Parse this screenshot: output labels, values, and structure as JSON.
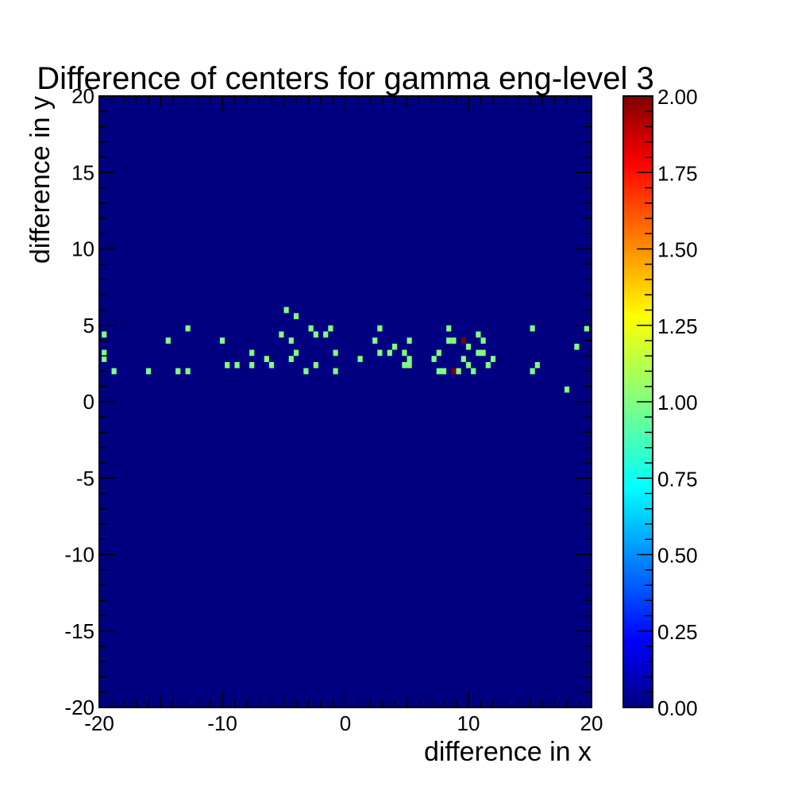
{
  "chart_data": {
    "type": "heatmap",
    "title": "Difference of centers for gamma eng-level 3",
    "xlabel": "difference in x",
    "ylabel": "difference in y",
    "xlim": [
      -20,
      20
    ],
    "ylim": [
      -20,
      20
    ],
    "bin_width": 0.4,
    "x_ticks": [
      "-20",
      "-10",
      "0",
      "10",
      "20"
    ],
    "y_ticks": [
      "-20",
      "-15",
      "-10",
      "-5",
      "0",
      "5",
      "10",
      "15",
      "20"
    ],
    "colorbar": {
      "range": [
        0,
        2
      ],
      "ticks": [
        "0.00",
        "0.25",
        "0.50",
        "0.75",
        "1.00",
        "1.25",
        "1.50",
        "1.75",
        "2.00"
      ]
    },
    "background_value": 0,
    "colors": {
      "zero": "#000080",
      "one": "#80ff80",
      "two": "#800000"
    },
    "cells": [
      {
        "x": -19.8,
        "y": 4.2,
        "v": 1
      },
      {
        "x": -19.8,
        "y": 3.0,
        "v": 1
      },
      {
        "x": -19.8,
        "y": 2.6,
        "v": 1
      },
      {
        "x": -19.0,
        "y": 1.8,
        "v": 1
      },
      {
        "x": -16.2,
        "y": 1.8,
        "v": 1
      },
      {
        "x": -14.6,
        "y": 3.8,
        "v": 1
      },
      {
        "x": -13.8,
        "y": 1.8,
        "v": 1
      },
      {
        "x": -13.0,
        "y": 4.6,
        "v": 1
      },
      {
        "x": -13.0,
        "y": 1.8,
        "v": 1
      },
      {
        "x": -10.2,
        "y": 3.8,
        "v": 1
      },
      {
        "x": -9.8,
        "y": 2.2,
        "v": 1
      },
      {
        "x": -9.0,
        "y": 2.2,
        "v": 1
      },
      {
        "x": -7.8,
        "y": 3.0,
        "v": 1
      },
      {
        "x": -7.8,
        "y": 2.2,
        "v": 1
      },
      {
        "x": -6.6,
        "y": 2.6,
        "v": 1
      },
      {
        "x": -6.2,
        "y": 2.2,
        "v": 1
      },
      {
        "x": -5.4,
        "y": 4.2,
        "v": 1
      },
      {
        "x": -5.0,
        "y": 5.8,
        "v": 1
      },
      {
        "x": -4.6,
        "y": 3.8,
        "v": 1
      },
      {
        "x": -4.6,
        "y": 2.6,
        "v": 1
      },
      {
        "x": -4.2,
        "y": 5.4,
        "v": 1
      },
      {
        "x": -4.2,
        "y": 3.0,
        "v": 1
      },
      {
        "x": -3.4,
        "y": 1.8,
        "v": 1
      },
      {
        "x": -3.0,
        "y": 4.6,
        "v": 1
      },
      {
        "x": -2.6,
        "y": 4.2,
        "v": 1
      },
      {
        "x": -2.6,
        "y": 2.2,
        "v": 1
      },
      {
        "x": -1.8,
        "y": 4.2,
        "v": 1
      },
      {
        "x": -1.4,
        "y": 4.6,
        "v": 1
      },
      {
        "x": -1.0,
        "y": 3.0,
        "v": 1
      },
      {
        "x": -1.0,
        "y": 1.8,
        "v": 1
      },
      {
        "x": 1.0,
        "y": 2.6,
        "v": 1
      },
      {
        "x": 2.2,
        "y": 3.8,
        "v": 1
      },
      {
        "x": 2.6,
        "y": 4.6,
        "v": 1
      },
      {
        "x": 2.6,
        "y": 3.0,
        "v": 1
      },
      {
        "x": 3.4,
        "y": 3.0,
        "v": 1
      },
      {
        "x": 3.8,
        "y": 3.4,
        "v": 1
      },
      {
        "x": 4.6,
        "y": 3.0,
        "v": 1
      },
      {
        "x": 4.6,
        "y": 2.2,
        "v": 1
      },
      {
        "x": 5.0,
        "y": 3.8,
        "v": 1
      },
      {
        "x": 5.0,
        "y": 2.6,
        "v": 1
      },
      {
        "x": 5.0,
        "y": 2.2,
        "v": 1
      },
      {
        "x": 7.0,
        "y": 2.6,
        "v": 1
      },
      {
        "x": 7.4,
        "y": 3.0,
        "v": 1
      },
      {
        "x": 7.4,
        "y": 1.8,
        "v": 1
      },
      {
        "x": 7.8,
        "y": 1.8,
        "v": 1
      },
      {
        "x": 8.2,
        "y": 4.6,
        "v": 1
      },
      {
        "x": 8.2,
        "y": 3.8,
        "v": 1
      },
      {
        "x": 8.6,
        "y": 3.8,
        "v": 1
      },
      {
        "x": 8.6,
        "y": 1.8,
        "v": 2
      },
      {
        "x": 9.0,
        "y": 1.8,
        "v": 1
      },
      {
        "x": 9.4,
        "y": 3.8,
        "v": 2
      },
      {
        "x": 9.4,
        "y": 2.6,
        "v": 1
      },
      {
        "x": 9.8,
        "y": 3.4,
        "v": 1
      },
      {
        "x": 9.8,
        "y": 2.2,
        "v": 1
      },
      {
        "x": 10.2,
        "y": 1.8,
        "v": 1
      },
      {
        "x": 10.6,
        "y": 4.2,
        "v": 1
      },
      {
        "x": 10.6,
        "y": 3.0,
        "v": 1
      },
      {
        "x": 11.0,
        "y": 3.8,
        "v": 1
      },
      {
        "x": 11.0,
        "y": 3.0,
        "v": 1
      },
      {
        "x": 11.4,
        "y": 2.2,
        "v": 1
      },
      {
        "x": 11.8,
        "y": 2.6,
        "v": 1
      },
      {
        "x": 15.0,
        "y": 4.6,
        "v": 1
      },
      {
        "x": 15.0,
        "y": 1.8,
        "v": 1
      },
      {
        "x": 15.4,
        "y": 2.2,
        "v": 1
      },
      {
        "x": 17.8,
        "y": 0.6,
        "v": 1
      },
      {
        "x": 18.6,
        "y": 3.4,
        "v": 1
      },
      {
        "x": 19.4,
        "y": 4.6,
        "v": 1
      }
    ]
  }
}
